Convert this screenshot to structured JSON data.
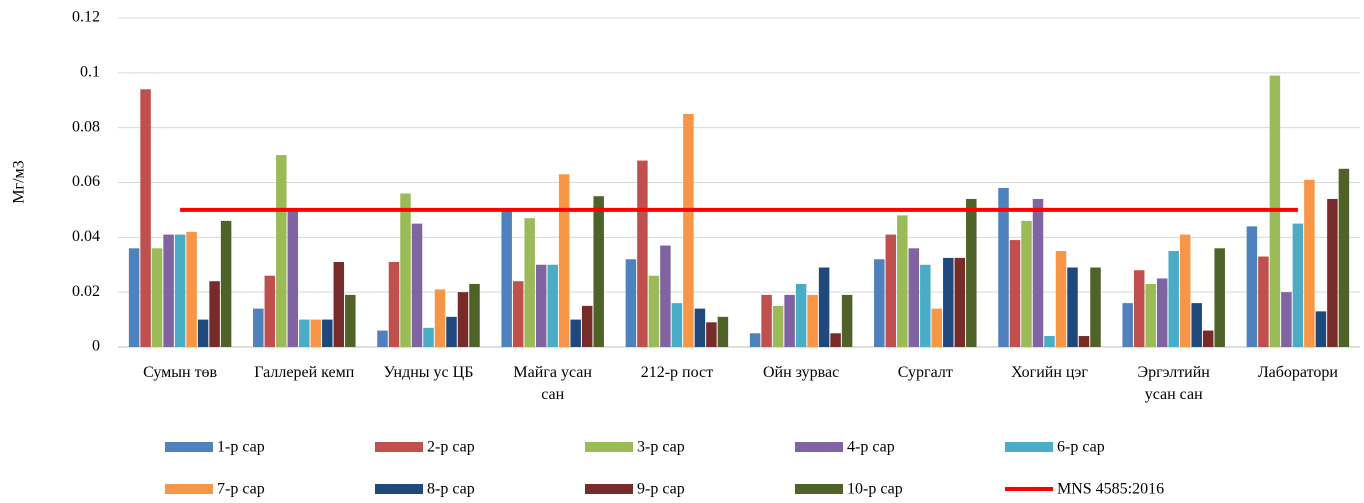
{
  "chart_data": {
    "type": "bar",
    "y_label": "Мг/м3",
    "categories": [
      "Сумын төв",
      "Галлерей кемп",
      "Ундны ус ЦБ",
      "Майга усан сан",
      "212-р пост",
      "Ойн зурвас",
      "Сургалт",
      "Хогийн цэг",
      "Эргэлтийн усан сан",
      "Лаборатори"
    ],
    "series": [
      {
        "name": "1-р сар",
        "color": "#4f81bd",
        "values": [
          0.036,
          0.014,
          0.006,
          0.05,
          0.032,
          0.005,
          0.032,
          0.058,
          0.016,
          0.044
        ]
      },
      {
        "name": "2-р сар",
        "color": "#c0504d",
        "values": [
          0.094,
          0.026,
          0.031,
          0.024,
          0.068,
          0.019,
          0.041,
          0.039,
          0.028,
          0.033
        ]
      },
      {
        "name": "3-р сар",
        "color": "#9bbb59",
        "values": [
          0.036,
          0.07,
          0.056,
          0.047,
          0.026,
          0.015,
          0.048,
          0.046,
          0.023,
          0.099
        ]
      },
      {
        "name": "4-р сар",
        "color": "#8064a2",
        "values": [
          0.041,
          0.05,
          0.045,
          0.03,
          0.037,
          0.019,
          0.036,
          0.054,
          0.025,
          0.02
        ]
      },
      {
        "name": "6-р сар",
        "color": "#4bacc6",
        "values": [
          0.041,
          0.01,
          0.007,
          0.03,
          0.016,
          0.023,
          0.03,
          0.004,
          0.035,
          0.045
        ]
      },
      {
        "name": "7-р сар",
        "color": "#f79646",
        "values": [
          0.042,
          0.01,
          0.021,
          0.063,
          0.085,
          0.019,
          0.014,
          0.035,
          0.041,
          0.061
        ]
      },
      {
        "name": "8-р сар",
        "color": "#1f497d",
        "values": [
          0.01,
          0.01,
          0.011,
          0.01,
          0.014,
          0.029,
          0.0325,
          0.029,
          0.016,
          0.013
        ]
      },
      {
        "name": "9-р сар",
        "color": "#772c2a",
        "values": [
          0.024,
          0.031,
          0.02,
          0.015,
          0.009,
          0.005,
          0.0325,
          0.004,
          0.006,
          0.054
        ]
      },
      {
        "name": "10-р сар",
        "color": "#4f6228",
        "values": [
          0.046,
          0.019,
          0.023,
          0.055,
          0.011,
          0.019,
          0.054,
          0.029,
          0.036,
          0.065
        ]
      },
      {
        "name": "MNS 4585:2016",
        "color": "#ff0000",
        "type": "line",
        "values": [
          0.05,
          0.05,
          0.05,
          0.05,
          0.05,
          0.05,
          0.05,
          0.05,
          0.05,
          0.05
        ]
      }
    ],
    "ylim": [
      0,
      0.12
    ],
    "yticks": [
      0,
      0.02,
      0.04,
      0.06,
      0.08,
      0.1,
      0.12
    ],
    "grid": true,
    "legend": "bottom"
  }
}
